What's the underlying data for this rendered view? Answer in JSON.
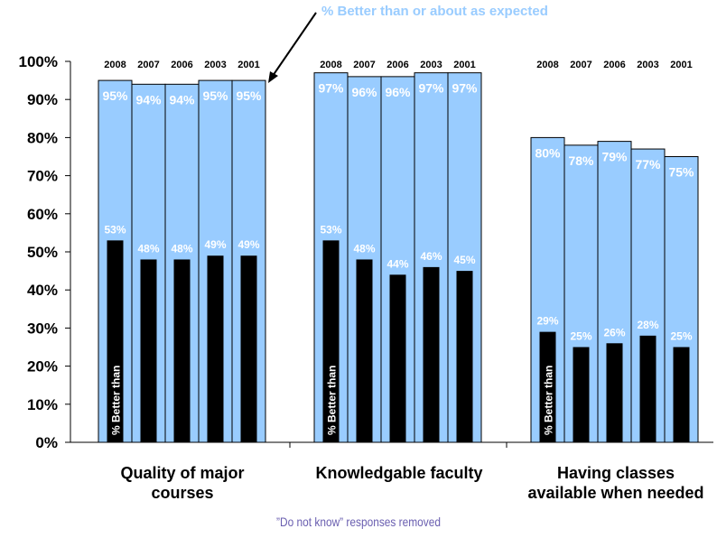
{
  "callout_label": "% Better than or about as expected",
  "inner_bar_label": "% Better than",
  "footnote": "”Do not know” responses removed",
  "colors": {
    "outer_bar": "#99ccff",
    "inner_bar": "#000000",
    "callout": "#99ccff",
    "footnote": "#6a5fb0"
  },
  "chart_data": {
    "type": "bar",
    "ylim": [
      0,
      1
    ],
    "yticks": [
      "0%",
      "10%",
      "20%",
      "30%",
      "40%",
      "50%",
      "60%",
      "70%",
      "80%",
      "90%",
      "100%"
    ],
    "years": [
      "2008",
      "2007",
      "2006",
      "2003",
      "2001"
    ],
    "series": [
      {
        "name": "% Better than or about as expected",
        "color": "#99ccff"
      },
      {
        "name": "% Better than",
        "color": "#000000"
      }
    ],
    "categories": [
      {
        "label": "Quality of major courses",
        "label_lines": [
          "Quality of major",
          "courses"
        ],
        "better_or_expected": [
          0.95,
          0.94,
          0.94,
          0.95,
          0.95
        ],
        "better_or_expected_labels": [
          "95%",
          "94%",
          "94%",
          "95%",
          "95%"
        ],
        "better": [
          0.53,
          0.48,
          0.48,
          0.49,
          0.49
        ],
        "better_labels": [
          "53%",
          "48%",
          "48%",
          "49%",
          "49%"
        ]
      },
      {
        "label": "Knowledgable faculty",
        "label_lines": [
          "Knowledgable faculty"
        ],
        "better_or_expected": [
          0.97,
          0.96,
          0.96,
          0.97,
          0.97
        ],
        "better_or_expected_labels": [
          "97%",
          "96%",
          "96%",
          "97%",
          "97%"
        ],
        "better": [
          0.53,
          0.48,
          0.44,
          0.46,
          0.45
        ],
        "better_labels": [
          "53%",
          "48%",
          "44%",
          "46%",
          "45%"
        ]
      },
      {
        "label": "Having classes available when needed",
        "label_lines": [
          "Having classes",
          "available when needed"
        ],
        "better_or_expected": [
          0.8,
          0.78,
          0.79,
          0.77,
          0.75
        ],
        "better_or_expected_labels": [
          "80%",
          "78%",
          "79%",
          "77%",
          "75%"
        ],
        "better": [
          0.29,
          0.25,
          0.26,
          0.28,
          0.25
        ],
        "better_labels": [
          "29%",
          "25%",
          "26%",
          "28%",
          "25%"
        ]
      }
    ]
  }
}
